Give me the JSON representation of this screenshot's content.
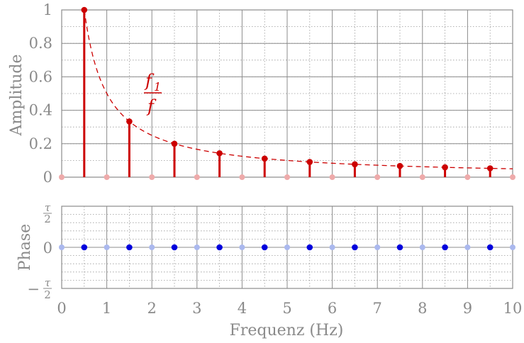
{
  "chart_data": [
    {
      "type": "stem",
      "ylabel": "Amplitude",
      "ylim": [
        0,
        1
      ],
      "yticks": [
        "0",
        "0.2",
        "0.4",
        "0.6",
        "0.8",
        "1"
      ],
      "x": [
        0.5,
        1.5,
        2.5,
        3.5,
        4.5,
        5.5,
        6.5,
        7.5,
        8.5,
        9.5
      ],
      "values": [
        1.0,
        0.333,
        0.2,
        0.143,
        0.111,
        0.091,
        0.077,
        0.067,
        0.059,
        0.053
      ],
      "zero_points_x": [
        0,
        1,
        2,
        3,
        4,
        5,
        6,
        7,
        8,
        9,
        10
      ],
      "curve_label": {
        "numerator": "f",
        "numerator_sub": "1",
        "denominator": "f"
      },
      "color": "#cc0000",
      "grid": true
    },
    {
      "type": "scatter",
      "ylabel": "Phase",
      "ylim": [
        -1.5708,
        1.5708
      ],
      "yticks": [
        "−τ/2",
        "0",
        "τ/2"
      ],
      "x": [
        0.5,
        1.5,
        2.5,
        3.5,
        4.5,
        5.5,
        6.5,
        7.5,
        8.5,
        9.5
      ],
      "values": [
        0,
        0,
        0,
        0,
        0,
        0,
        0,
        0,
        0,
        0
      ],
      "zero_points_x": [
        0,
        1,
        2,
        3,
        4,
        5,
        6,
        7,
        8,
        9,
        10
      ],
      "tau_symbol": "τ",
      "tau_denominator": "2",
      "minus": "−",
      "color": "#0000dd",
      "grid": true
    }
  ],
  "x_axis": {
    "label": "Frequenz (Hz)",
    "ticks": [
      "0",
      "1",
      "2",
      "3",
      "4",
      "5",
      "6",
      "7",
      "8",
      "9",
      "10"
    ],
    "xlim": [
      0,
      10
    ]
  }
}
